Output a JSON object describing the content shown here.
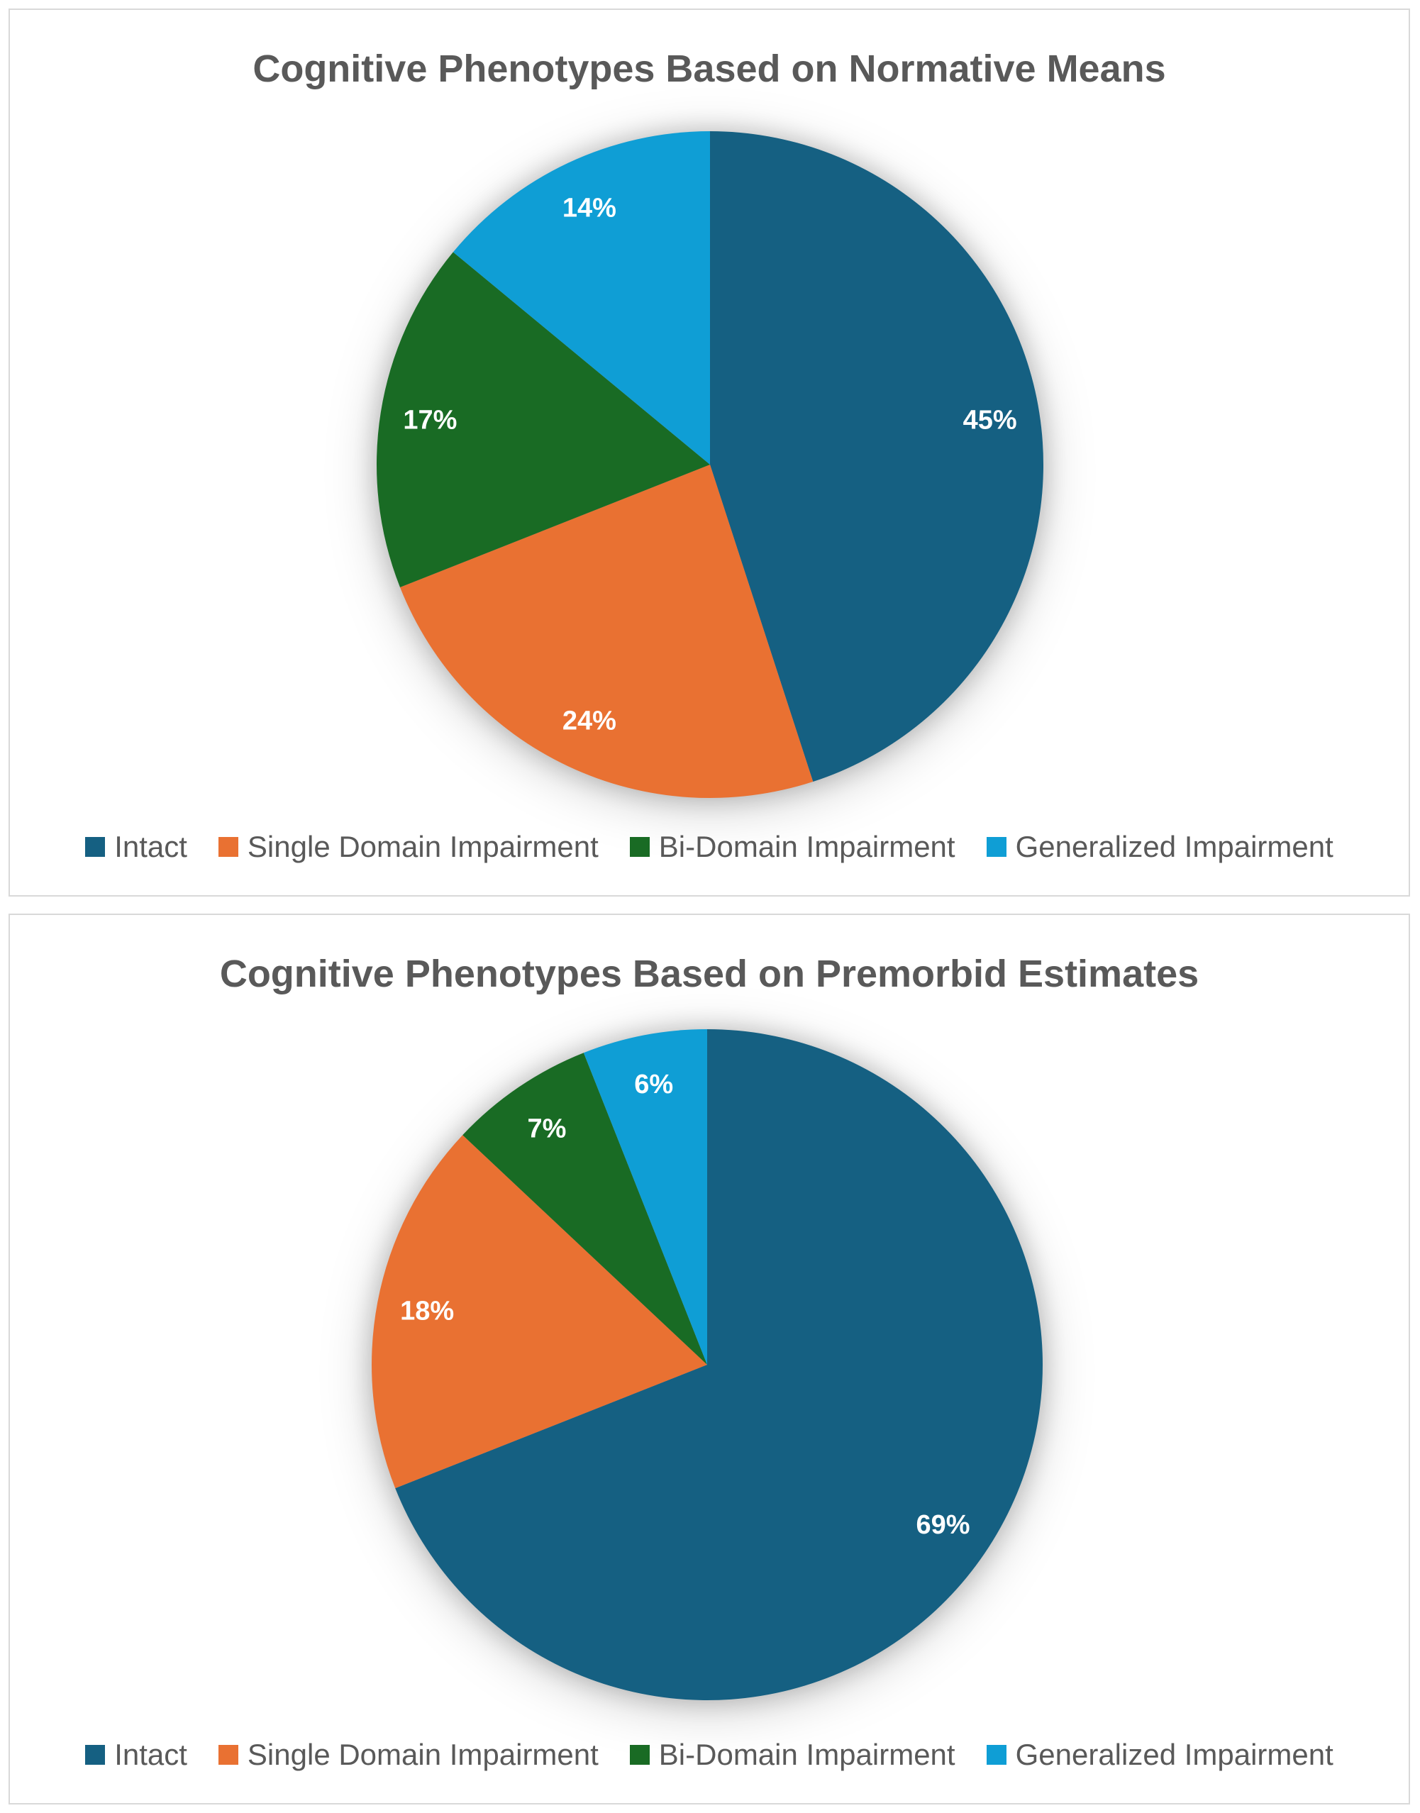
{
  "page": {
    "background": "#FFFFFF",
    "panel_border_color": "#D9D9D9"
  },
  "styles": {
    "title_color": "#595959",
    "legend_text_color": "#595959",
    "data_label_color": "#FFFFFF"
  },
  "legend": {
    "position": "bottom",
    "items": [
      {
        "label": "Intact",
        "color": "#156082"
      },
      {
        "label": "Single Domain Impairment",
        "color": "#E97132"
      },
      {
        "label": "Bi-Domain Impairment",
        "color": "#196B24"
      },
      {
        "label": "Generalized Impairment",
        "color": "#0F9ED5"
      }
    ]
  },
  "chart_data": [
    {
      "type": "pie",
      "title": "Cognitive Phenotypes Based on Normative Means",
      "categories": [
        "Intact",
        "Single Domain Impairment",
        "Bi-Domain Impairment",
        "Generalized Impairment"
      ],
      "values": [
        45,
        24,
        17,
        14
      ],
      "data_labels": [
        "45%",
        "24%",
        "17%",
        "14%"
      ],
      "colors": [
        "#156082",
        "#E97132",
        "#196B24",
        "#0F9ED5"
      ],
      "start_angle_deg": 0,
      "direction": "clockwise",
      "legend_position": "bottom"
    },
    {
      "type": "pie",
      "title": "Cognitive Phenotypes Based on Premorbid Estimates",
      "categories": [
        "Intact",
        "Single Domain Impairment",
        "Bi-Domain Impairment",
        "Generalized Impairment"
      ],
      "values": [
        69,
        18,
        7,
        6
      ],
      "data_labels": [
        "69%",
        "18%",
        "7%",
        "6%"
      ],
      "colors": [
        "#156082",
        "#E97132",
        "#196B24",
        "#0F9ED5"
      ],
      "start_angle_deg": 0,
      "direction": "clockwise",
      "legend_position": "bottom"
    }
  ]
}
